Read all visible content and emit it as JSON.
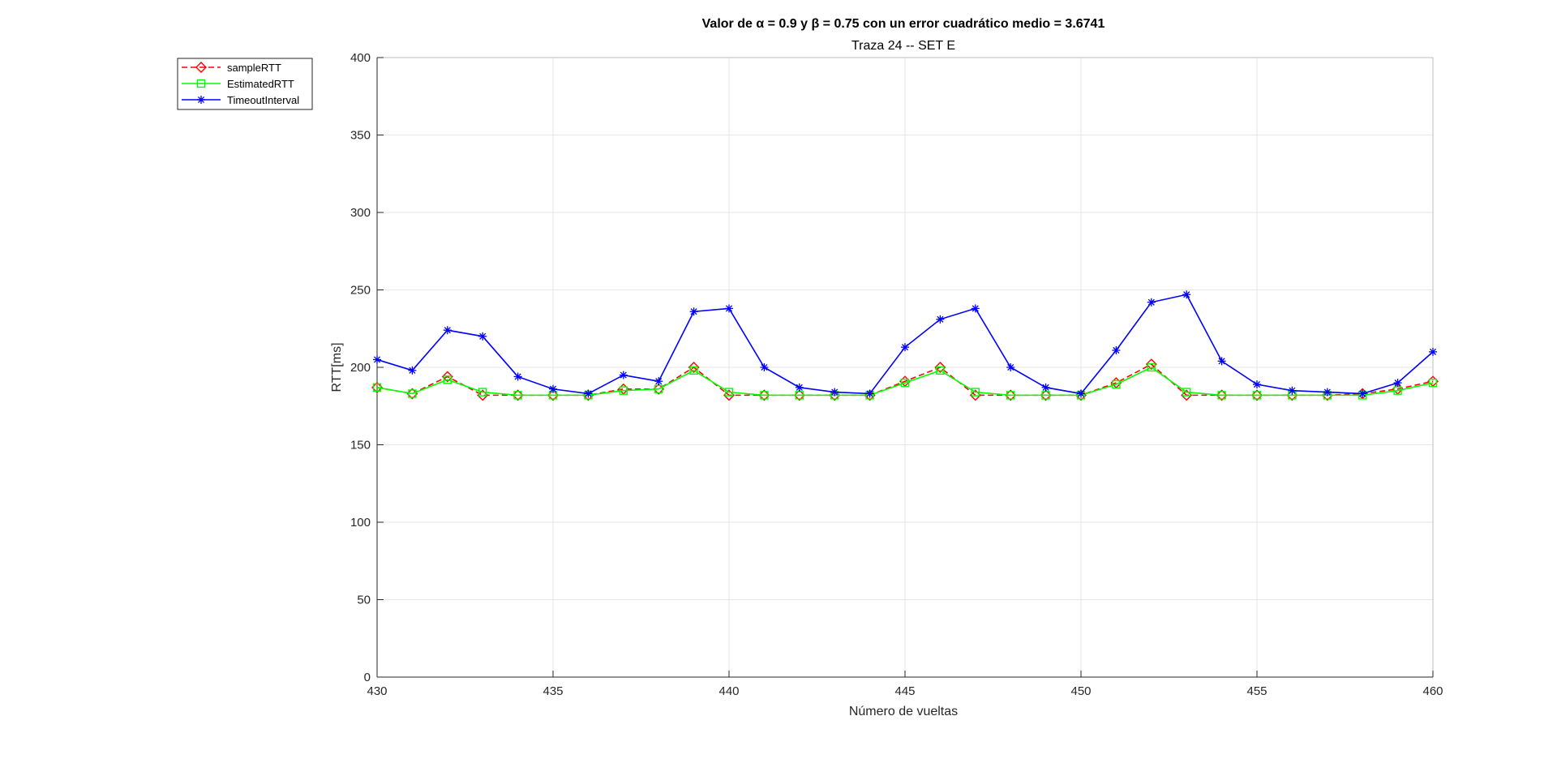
{
  "chart_data": {
    "type": "line",
    "title": "Valor de α = 0.9 y  β = 0.75 con un error cuadrático medio = 3.6741",
    "subtitle": "Traza 24 -- SET E",
    "xlabel": "Número de vueltas",
    "ylabel": "RTT[ms]",
    "xlim": [
      430,
      460
    ],
    "ylim": [
      0,
      400
    ],
    "xticks": [
      430,
      435,
      440,
      445,
      450,
      455,
      460
    ],
    "yticks": [
      0,
      50,
      100,
      150,
      200,
      250,
      300,
      350,
      400
    ],
    "xtick_labels": [
      "430",
      "435",
      "440",
      "445",
      "450",
      "455",
      "460"
    ],
    "ytick_labels": [
      "0",
      "50",
      "100",
      "150",
      "200",
      "250",
      "300",
      "350",
      "400"
    ],
    "grid": true,
    "legend_position": "outside-top-left",
    "x": [
      430,
      431,
      432,
      433,
      434,
      435,
      436,
      437,
      438,
      439,
      440,
      441,
      442,
      443,
      444,
      445,
      446,
      447,
      448,
      449,
      450,
      451,
      452,
      453,
      454,
      455,
      456,
      457,
      458,
      459,
      460
    ],
    "series": [
      {
        "name": "sampleRTT",
        "color": "#ff0000",
        "line_style": "dashed",
        "marker": "diamond",
        "values": [
          187,
          183,
          194,
          182,
          182,
          182,
          182,
          186,
          186,
          200,
          182,
          182,
          182,
          182,
          182,
          191,
          200,
          182,
          182,
          182,
          182,
          190,
          202,
          182,
          182,
          182,
          182,
          182,
          183,
          186,
          191
        ]
      },
      {
        "name": "EstimatedRTT",
        "color": "#00ff00",
        "line_style": "solid",
        "marker": "square",
        "values": [
          187,
          183,
          192,
          184,
          182,
          182,
          182,
          185,
          186,
          198,
          184,
          182,
          182,
          182,
          182,
          190,
          198,
          184,
          182,
          182,
          182,
          189,
          200,
          184,
          182,
          182,
          182,
          182,
          182,
          185,
          190
        ]
      },
      {
        "name": "TimeoutInterval",
        "color": "#0000ff",
        "line_style": "solid",
        "marker": "asterisk",
        "values": [
          205,
          198,
          224,
          220,
          194,
          186,
          183,
          195,
          191,
          236,
          238,
          200,
          187,
          184,
          183,
          213,
          231,
          238,
          200,
          187,
          183,
          211,
          242,
          247,
          204,
          189,
          185,
          184,
          183,
          190,
          210
        ]
      }
    ]
  }
}
